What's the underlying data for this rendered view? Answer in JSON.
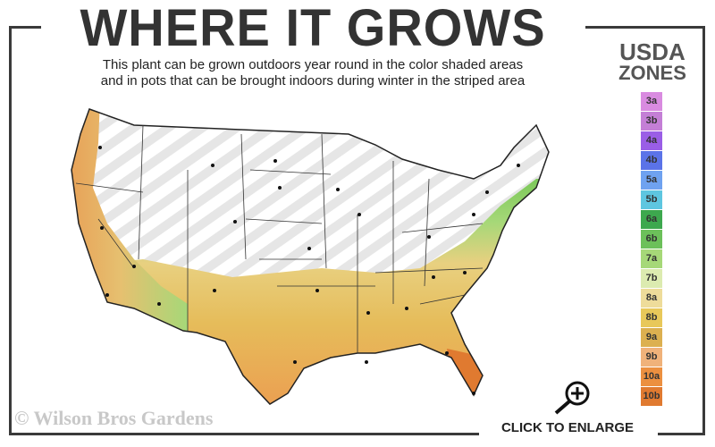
{
  "title": "WHERE IT GROWS",
  "subtitle_line1": "This plant can be grown outdoors year round in the color shaded areas",
  "subtitle_line2": "and in pots that can be brought indoors during winter in the striped area",
  "legend": {
    "title_line1": "USDA",
    "title_line2": "ZONES",
    "zones": [
      {
        "label": "3a",
        "color": "#d98be0"
      },
      {
        "label": "3b",
        "color": "#c47fd6"
      },
      {
        "label": "4a",
        "color": "#9a5ee6"
      },
      {
        "label": "4b",
        "color": "#5b73e8"
      },
      {
        "label": "5a",
        "color": "#6fa2f0"
      },
      {
        "label": "5b",
        "color": "#5ec6e0"
      },
      {
        "label": "6a",
        "color": "#3da84e"
      },
      {
        "label": "6b",
        "color": "#6cc05a"
      },
      {
        "label": "7a",
        "color": "#a6d878"
      },
      {
        "label": "7b",
        "color": "#dcebb0"
      },
      {
        "label": "8a",
        "color": "#eedc9a"
      },
      {
        "label": "8b",
        "color": "#e8c85a"
      },
      {
        "label": "9a",
        "color": "#dcb050"
      },
      {
        "label": "9b",
        "color": "#f0b27a"
      },
      {
        "label": "10a",
        "color": "#ec9040"
      },
      {
        "label": "10b",
        "color": "#e07a30"
      }
    ]
  },
  "copyright": "© Wilson Bros Gardens",
  "enlarge_label": "CLICK TO ENLARGE"
}
